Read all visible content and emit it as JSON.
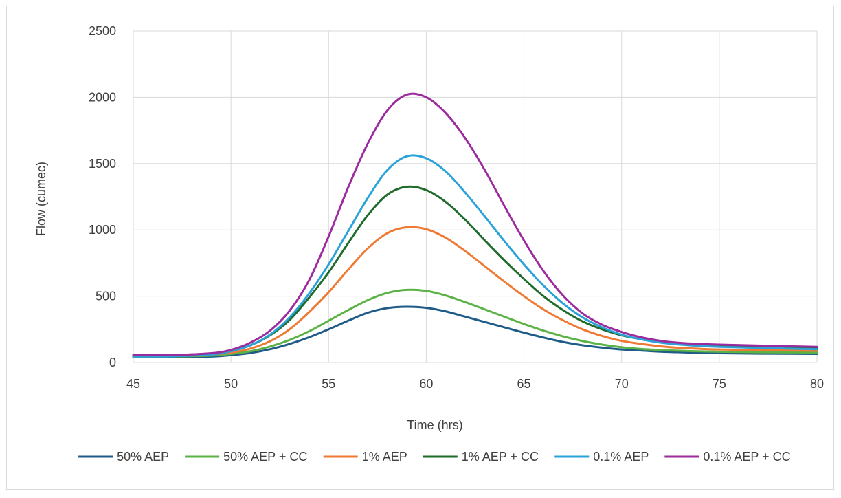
{
  "chart_data": {
    "type": "line",
    "title": "",
    "xlabel": "Time (hrs)",
    "ylabel": "Flow (cumec)",
    "xlim": [
      45,
      80
    ],
    "ylim": [
      0,
      2500
    ],
    "x_ticks": [
      "45",
      "50",
      "55",
      "60",
      "65",
      "70",
      "75",
      "80"
    ],
    "y_ticks": [
      "0",
      "500",
      "1000",
      "1500",
      "2000",
      "2500"
    ],
    "grid": true,
    "legend_position": "bottom",
    "x": [
      45,
      47,
      49,
      50,
      51,
      52,
      53,
      54,
      55,
      56,
      57,
      58,
      59,
      60,
      61,
      62,
      63,
      64,
      65,
      66,
      67,
      68,
      69,
      70,
      71,
      72,
      73,
      74,
      75,
      77,
      80
    ],
    "series": [
      {
        "name": "50% AEP",
        "color": "#1f5b87",
        "values": [
          40,
          40,
          45,
          55,
          72,
          100,
          140,
          190,
          250,
          315,
          375,
          410,
          420,
          412,
          385,
          345,
          305,
          265,
          225,
          188,
          155,
          130,
          112,
          98,
          90,
          82,
          77,
          73,
          70,
          67,
          65
        ]
      },
      {
        "name": "50% AEP + CC",
        "color": "#5bb245",
        "values": [
          45,
          46,
          52,
          65,
          85,
          120,
          170,
          235,
          315,
          395,
          470,
          525,
          548,
          540,
          505,
          455,
          400,
          345,
          290,
          240,
          197,
          162,
          135,
          115,
          102,
          94,
          88,
          84,
          81,
          77,
          75
        ]
      },
      {
        "name": "1% AEP",
        "color": "#ee7a34",
        "values": [
          50,
          51,
          60,
          75,
          105,
          160,
          250,
          380,
          530,
          700,
          860,
          975,
          1020,
          1005,
          940,
          840,
          725,
          610,
          500,
          400,
          318,
          250,
          200,
          163,
          140,
          122,
          110,
          103,
          98,
          93,
          88
        ]
      },
      {
        "name": "1% AEP + CC",
        "color": "#1e6b2c",
        "values": [
          55,
          56,
          68,
          88,
          130,
          205,
          320,
          490,
          680,
          900,
          1110,
          1265,
          1325,
          1300,
          1210,
          1075,
          920,
          770,
          630,
          500,
          395,
          310,
          250,
          205,
          175,
          152,
          138,
          130,
          125,
          118,
          110
        ]
      },
      {
        "name": "0.1% AEP",
        "color": "#2ba2d8",
        "values": [
          45,
          47,
          60,
          85,
          130,
          210,
          340,
          520,
          740,
          990,
          1240,
          1450,
          1555,
          1540,
          1440,
          1280,
          1100,
          915,
          740,
          580,
          445,
          340,
          265,
          210,
          175,
          150,
          135,
          125,
          118,
          110,
          100
        ]
      },
      {
        "name": "0.1% AEP + CC",
        "color": "#9c2b9e",
        "values": [
          55,
          56,
          70,
          95,
          150,
          240,
          390,
          620,
          950,
          1320,
          1650,
          1900,
          2020,
          2000,
          1880,
          1690,
          1450,
          1180,
          920,
          690,
          505,
          370,
          285,
          230,
          190,
          163,
          148,
          140,
          135,
          128,
          118
        ]
      }
    ]
  }
}
